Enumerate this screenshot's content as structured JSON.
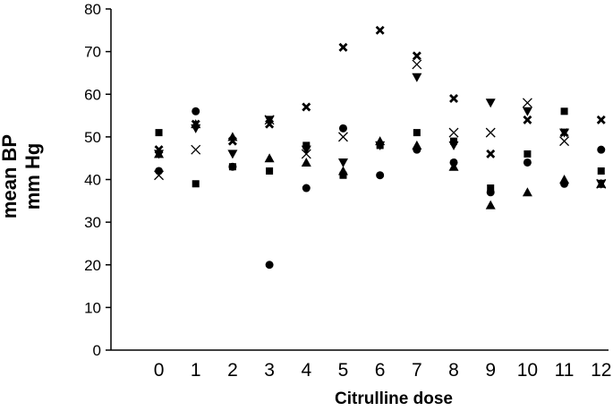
{
  "chart_data": {
    "type": "scatter",
    "title": "",
    "xlabel": "Citrulline dose",
    "ylabel_lines": [
      "mean BP",
      "mm Hg"
    ],
    "x_ticks": [
      0,
      1,
      2,
      3,
      4,
      5,
      6,
      7,
      8,
      9,
      10,
      11,
      12
    ],
    "y_ticks": [
      0,
      10,
      20,
      30,
      40,
      50,
      60,
      70,
      80
    ],
    "xlim": [
      -1.3,
      12.2
    ],
    "ylim": [
      0,
      80
    ],
    "grid": false,
    "legend": "none",
    "series": [
      {
        "marker": "square",
        "x": [
          0,
          1,
          2,
          3,
          4,
          5,
          6,
          7,
          8,
          9,
          10,
          11,
          12
        ],
        "y": [
          51,
          39,
          43,
          42,
          48,
          41,
          48,
          51,
          49,
          38,
          46,
          56,
          42
        ]
      },
      {
        "marker": "circle",
        "x": [
          0,
          1,
          2,
          3,
          4,
          5,
          6,
          7,
          8,
          9,
          10,
          11,
          12
        ],
        "y": [
          42,
          56,
          43,
          20,
          38,
          52,
          41,
          47,
          44,
          37,
          44,
          39,
          47
        ]
      },
      {
        "marker": "triangle-up",
        "x": [
          0,
          1,
          2,
          3,
          4,
          5,
          6,
          7,
          8,
          9,
          10,
          11,
          12
        ],
        "y": [
          46,
          53,
          50,
          45,
          44,
          42,
          49,
          48,
          43,
          34,
          37,
          40,
          39
        ]
      },
      {
        "marker": "triangle-down",
        "x": [
          0,
          1,
          2,
          3,
          4,
          5,
          6,
          7,
          8,
          9,
          10,
          11,
          12
        ],
        "y": [
          46,
          52,
          46,
          54,
          47,
          44,
          48,
          64,
          48,
          58,
          56,
          51,
          39
        ]
      },
      {
        "marker": "x-bold",
        "x": [
          0,
          1,
          2,
          3,
          4,
          5,
          6,
          7,
          8,
          9,
          10,
          11,
          12
        ],
        "y": [
          47,
          53,
          49,
          53,
          57,
          71,
          75,
          69,
          59,
          46,
          54,
          51,
          54
        ]
      },
      {
        "marker": "x-thin",
        "x": [
          0,
          1,
          3,
          4,
          5,
          7,
          8,
          9,
          10,
          11,
          12
        ],
        "y": [
          41,
          47,
          54,
          46,
          50,
          67,
          51,
          51,
          58,
          49,
          39
        ]
      }
    ]
  }
}
